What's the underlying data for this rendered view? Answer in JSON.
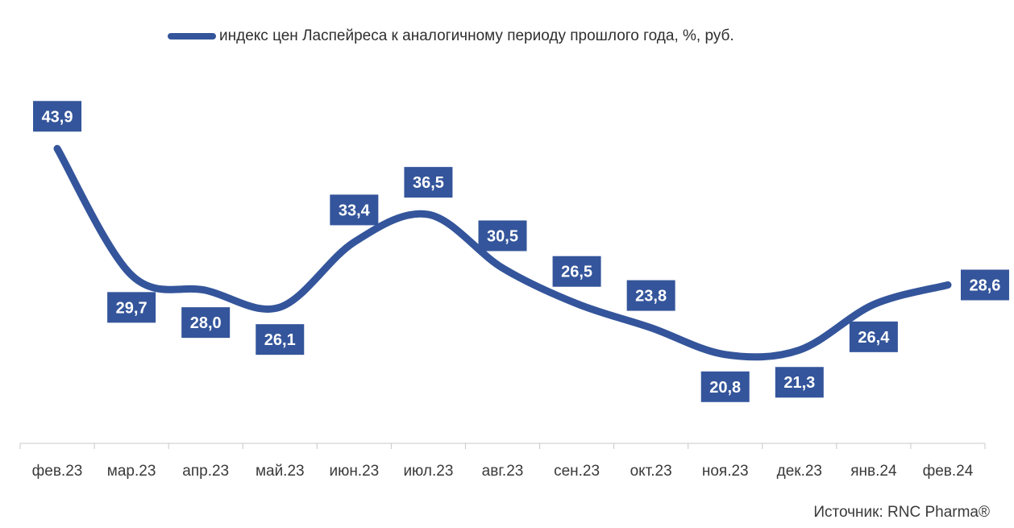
{
  "chart_data": {
    "type": "line",
    "categories": [
      "фев.23",
      "мар.23",
      "апр.23",
      "май.23",
      "июн.23",
      "июл.23",
      "авг.23",
      "сен.23",
      "окт.23",
      "ноя.23",
      "дек.23",
      "янв.24",
      "фев.24"
    ],
    "series": [
      {
        "name": "индекс цен Ласпейреса к аналогичному периоду прошлого года, %, руб.",
        "values": [
          43.9,
          29.7,
          28.0,
          26.1,
          33.4,
          36.5,
          30.5,
          26.5,
          23.8,
          20.8,
          21.3,
          26.4,
          28.6
        ],
        "labels": [
          "43,9",
          "29,7",
          "28,0",
          "26,1",
          "33,4",
          "36,5",
          "30,5",
          "26,5",
          "23,8",
          "20,8",
          "21,3",
          "26,4",
          "28,6"
        ],
        "color": "#34559b"
      }
    ],
    "label_placement": [
      "above",
      "below",
      "below",
      "below",
      "above",
      "above",
      "above",
      "above",
      "above",
      "below",
      "below",
      "below",
      "right"
    ],
    "ylim": [
      12,
      46
    ],
    "grid": false,
    "legend_position": "top",
    "source": "Источник: RNC Pharma®",
    "colors": {
      "line": "#34559b",
      "label_bg": "#34559b",
      "label_text": "#ffffff",
      "axis": "#c8c8c8",
      "tick_text": "#3a3a3a"
    }
  }
}
